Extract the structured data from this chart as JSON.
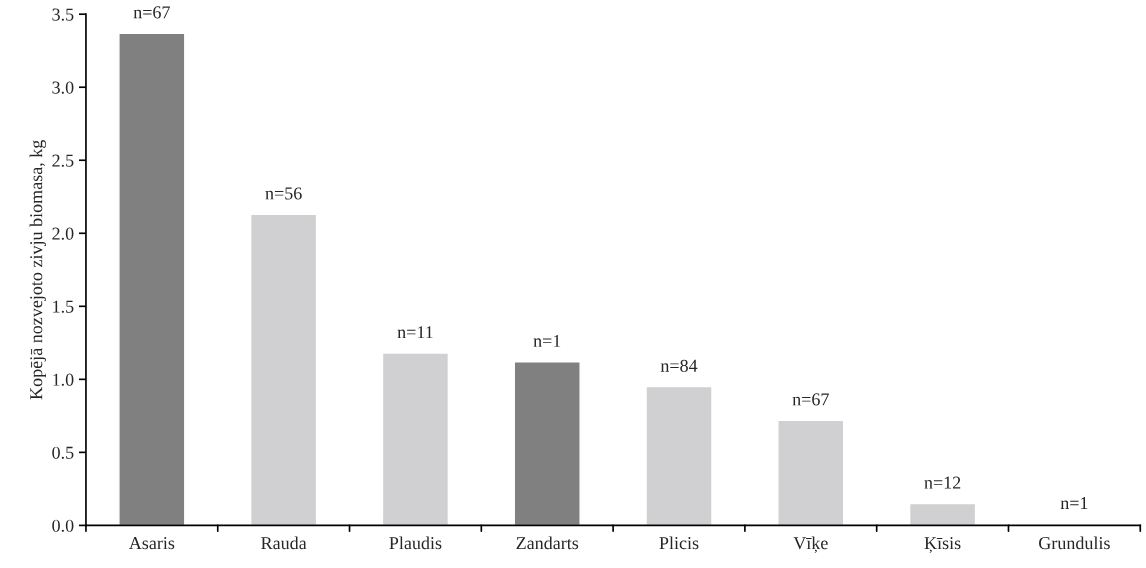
{
  "chart_data": {
    "type": "bar",
    "ylabel": "Kopējā nozvejoto zivju biomasa, kg",
    "categories": [
      "Asaris",
      "Rauda",
      "Plaudis",
      "Zandarts",
      "Plicis",
      "Vīķe",
      "Ķīsis",
      "Grundulis"
    ],
    "values": [
      3.37,
      2.13,
      1.18,
      1.12,
      0.95,
      0.72,
      0.15,
      0.01
    ],
    "colors": [
      "#808080",
      "#d0cfd1",
      "#d0cfd1",
      "#808080",
      "#d0cfd1",
      "#d0cfd1",
      "#d0cfd1",
      "#d0cfd1"
    ],
    "ylim": [
      0,
      3.5
    ],
    "yticks": [
      {
        "value": 0,
        "label": "0.0"
      },
      {
        "value": 0.5,
        "label": "0.5"
      },
      {
        "value": 1,
        "label": "1.0"
      },
      {
        "value": 1.5,
        "label": "1.5"
      },
      {
        "value": 2,
        "label": "2.0"
      },
      {
        "value": 2.5,
        "label": "2.5"
      },
      {
        "value": 3,
        "label": "3.0"
      },
      {
        "value": 3.5,
        "label": "3.5"
      }
    ],
    "annotations": [
      {
        "text": "n=67",
        "x": "Asaris",
        "y": 3.37
      },
      {
        "text": "n=56",
        "x": "Rauda",
        "y": 2.13
      },
      {
        "text": "n=11",
        "x": "Plaudis",
        "y": 1.18
      },
      {
        "text": "n=1",
        "x": "Zandarts",
        "y": 1.12
      },
      {
        "text": "n=84",
        "x": "Plicis",
        "y": 0.95
      },
      {
        "text": "n=67",
        "x": "Vīķe",
        "y": 0.72
      },
      {
        "text": "n=12",
        "x": "Ķīsis",
        "y": 0.15
      },
      {
        "text": "n=1",
        "x": "Grundulis",
        "y": 0.01
      }
    ],
    "grid": false,
    "legend": false
  }
}
